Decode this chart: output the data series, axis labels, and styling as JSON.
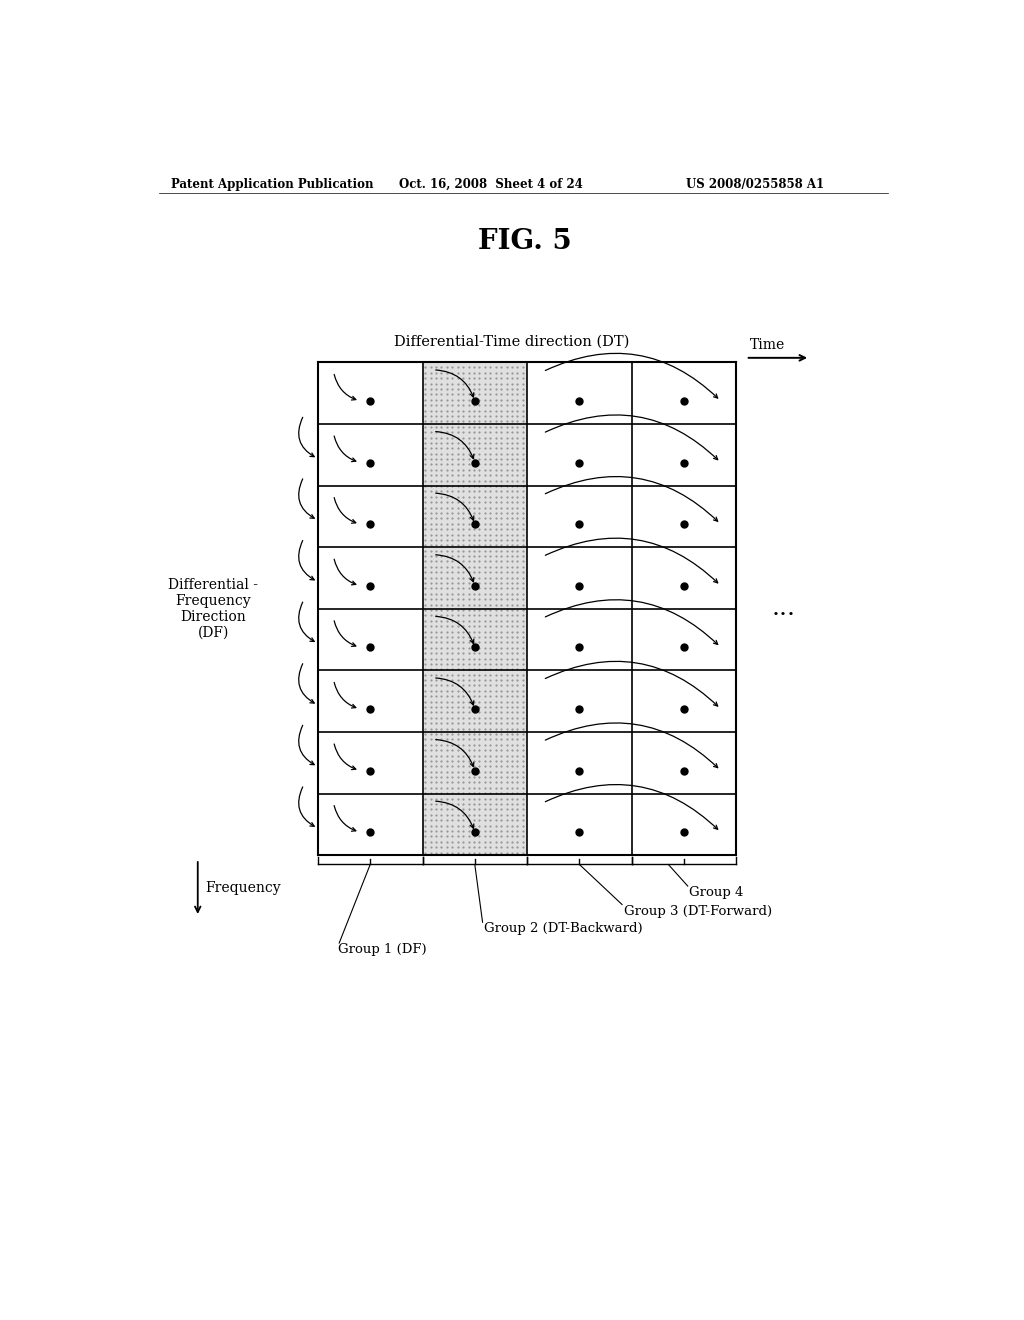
{
  "title": "FIG. 5",
  "header_left": "Patent Application Publication",
  "header_center": "Oct. 16, 2008  Sheet 4 of 24",
  "header_right": "US 2008/0255858 A1",
  "dt_label": "Differential-Time direction (DT)",
  "time_label": "Time",
  "df_label": "Differential -\nFrequency\nDirection\n(DF)",
  "freq_label": "Frequency",
  "ellipsis": "...",
  "group1": "Group 1 (DF)",
  "group2": "Group 2 (DT-Backward)",
  "group3": "Group 3 (DT-Forward)",
  "group4": "Group 4",
  "n_rows": 8,
  "n_cols": 4,
  "shaded_col": 1,
  "bg_color": "#ffffff",
  "grid_color": "#000000",
  "dot_color": "#000000",
  "shade_color": "#cccccc"
}
